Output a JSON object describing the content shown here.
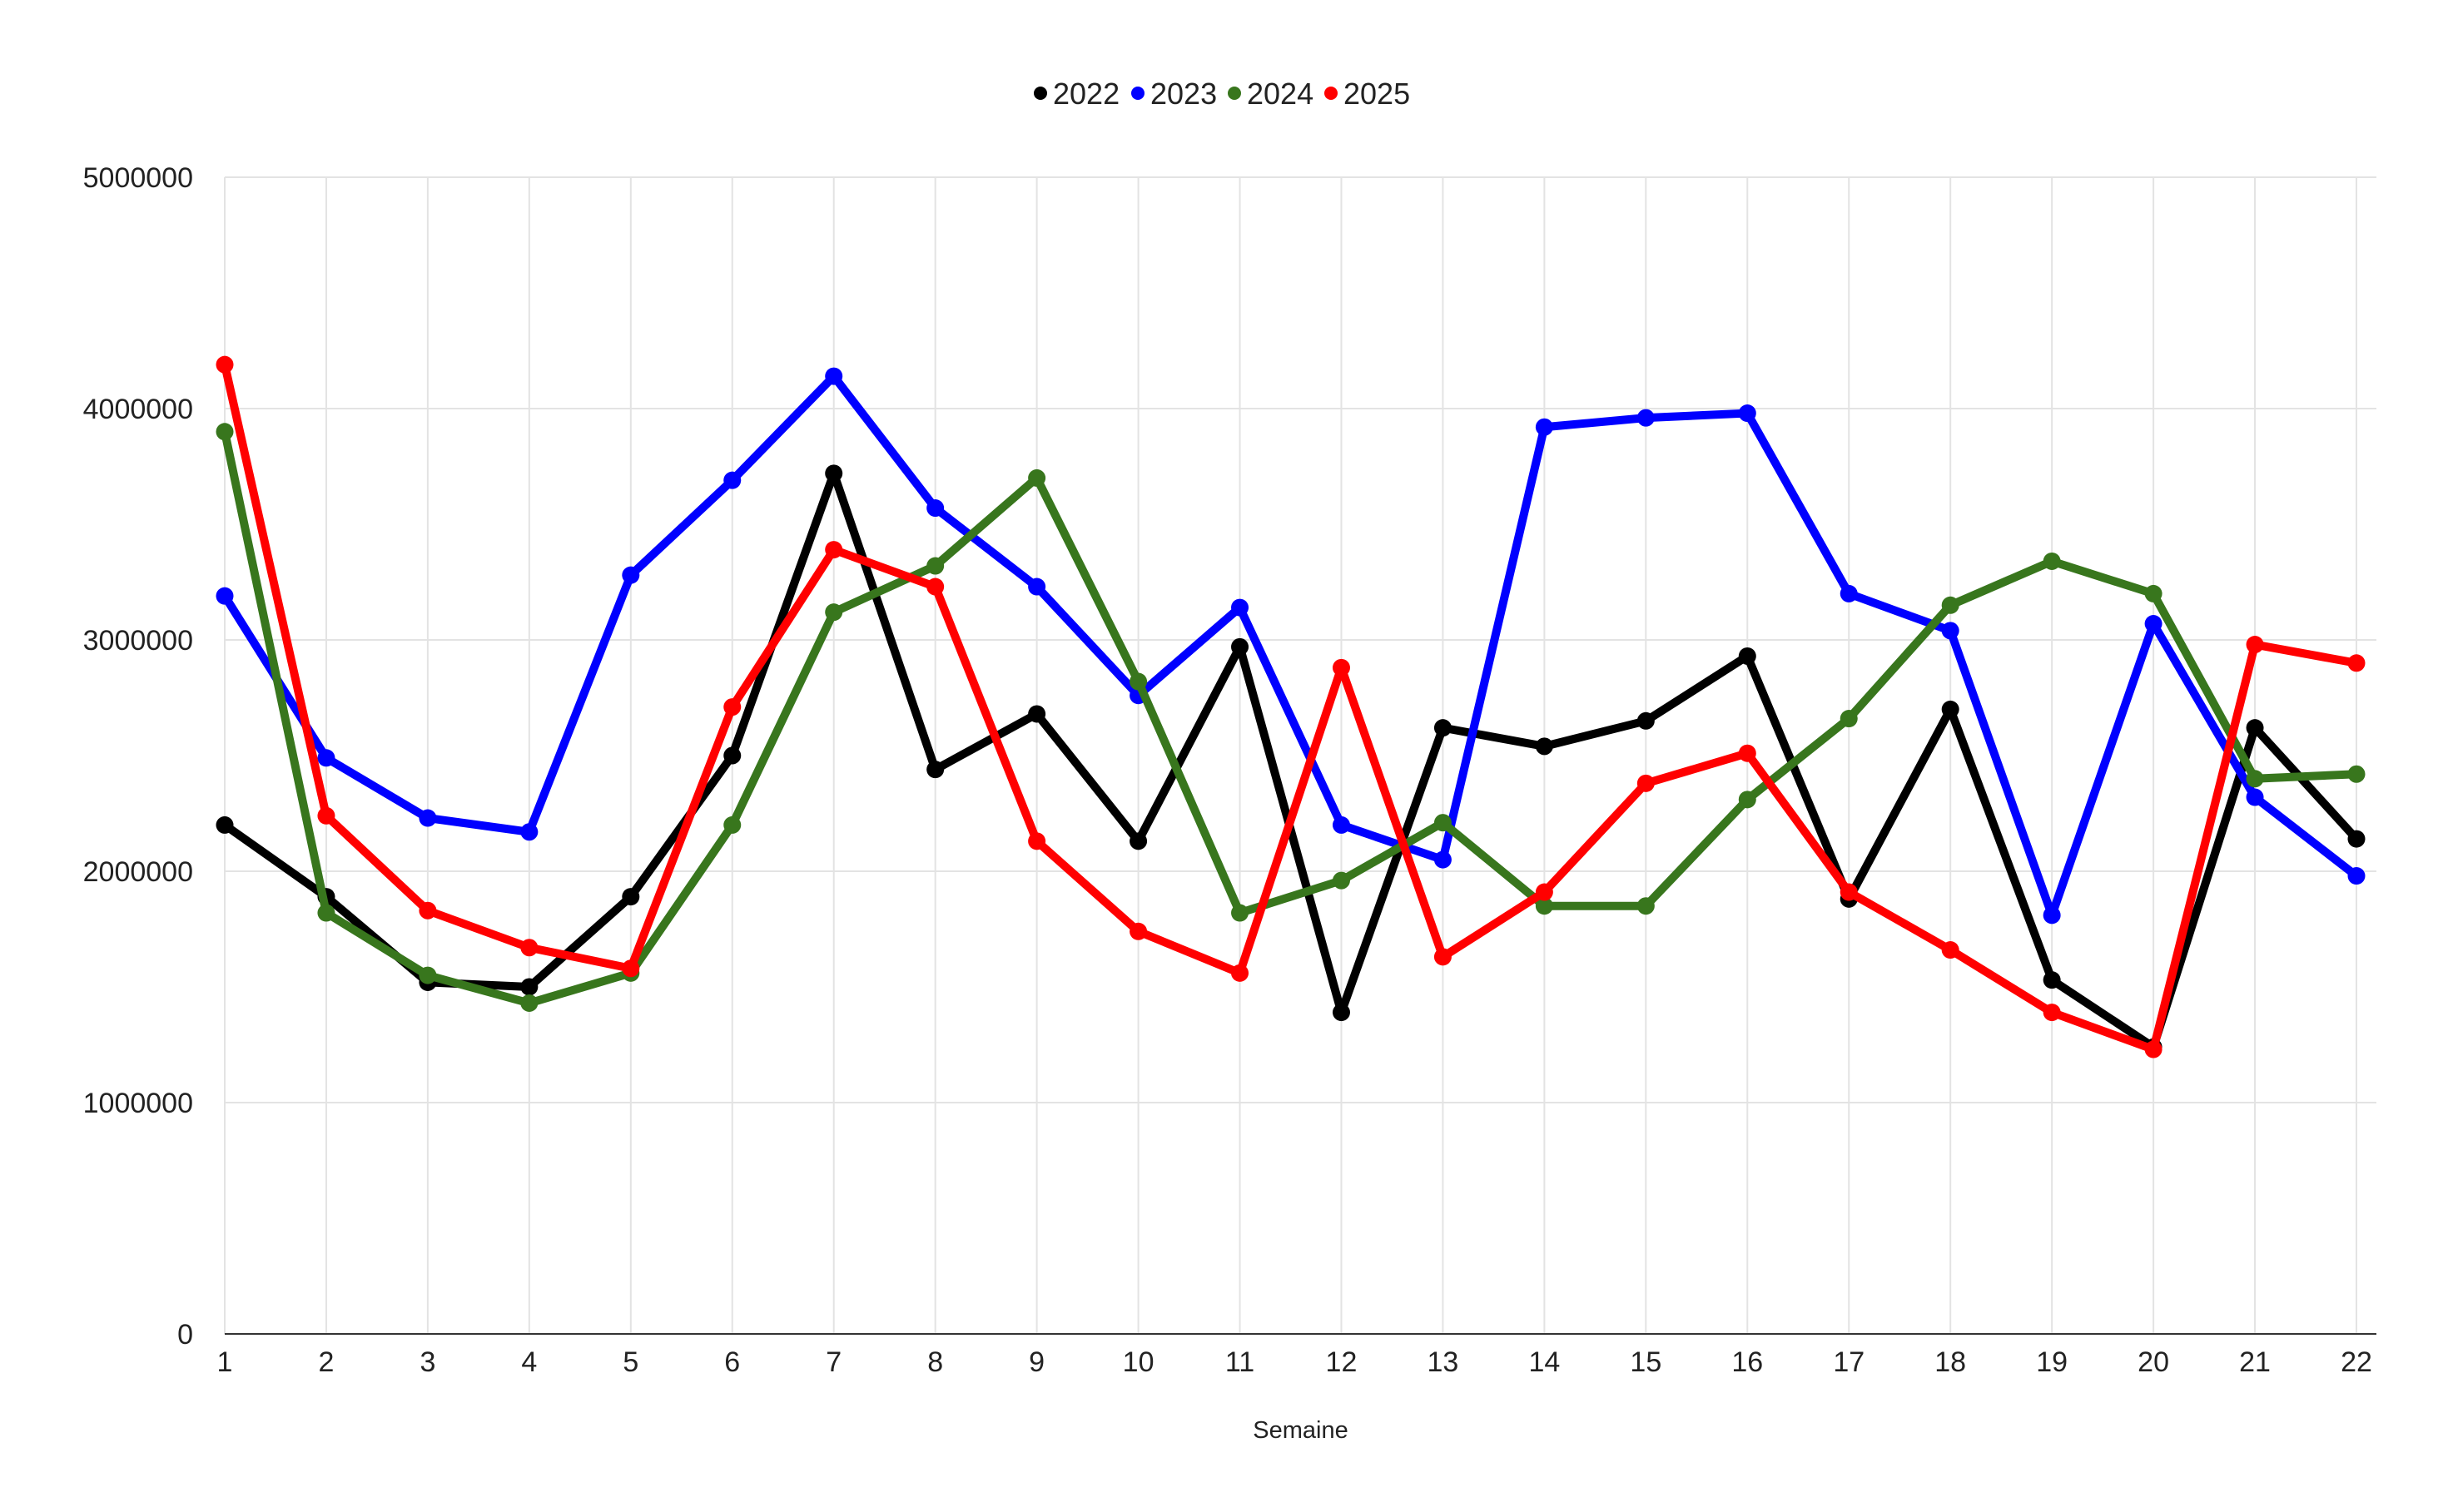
{
  "chart_data": {
    "type": "line",
    "title": "",
    "xlabel": "Semaine",
    "ylabel": "",
    "categories": [
      "1",
      "2",
      "3",
      "4",
      "5",
      "6",
      "7",
      "8",
      "9",
      "10",
      "11",
      "12",
      "13",
      "14",
      "15",
      "16",
      "17",
      "18",
      "19",
      "20",
      "21",
      "22"
    ],
    "ylim": [
      0,
      5000000
    ],
    "yticks": [
      "0",
      "1000000",
      "2000000",
      "3000000",
      "4000000",
      "5000000"
    ],
    "ytick_values": [
      0,
      1000000,
      2000000,
      3000000,
      4000000,
      5000000
    ],
    "grid": true,
    "legend_position": "top",
    "series": [
      {
        "name": "2022",
        "color": "#000000",
        "values": [
          2200000,
          1890000,
          1520000,
          1500000,
          1890000,
          2500000,
          3720000,
          2440000,
          2680000,
          2130000,
          2970000,
          1390000,
          2620000,
          2540000,
          2650000,
          2930000,
          1880000,
          2700000,
          1530000,
          1240000,
          2620000,
          2140000
        ]
      },
      {
        "name": "2023",
        "color": "#0000ff",
        "values": [
          3190000,
          2490000,
          2230000,
          2170000,
          3280000,
          3690000,
          4140000,
          3570000,
          3230000,
          2760000,
          3140000,
          2200000,
          2050000,
          3920000,
          3960000,
          3980000,
          3200000,
          3040000,
          1810000,
          3070000,
          2320000,
          1980000
        ]
      },
      {
        "name": "2024",
        "color": "#38761d",
        "values": [
          3900000,
          1820000,
          1550000,
          1430000,
          1560000,
          2200000,
          3120000,
          3320000,
          3700000,
          2820000,
          1820000,
          1960000,
          2210000,
          1850000,
          1850000,
          2310000,
          2660000,
          3150000,
          3340000,
          3200000,
          2400000,
          2420000
        ]
      },
      {
        "name": "2025",
        "color": "#ff0000",
        "values": [
          4190000,
          2240000,
          1830000,
          1670000,
          1580000,
          2710000,
          3390000,
          3230000,
          2130000,
          1740000,
          1560000,
          2880000,
          1630000,
          1910000,
          2380000,
          2510000,
          1910000,
          1660000,
          1390000,
          1230000,
          2980000,
          2900000
        ]
      }
    ]
  }
}
